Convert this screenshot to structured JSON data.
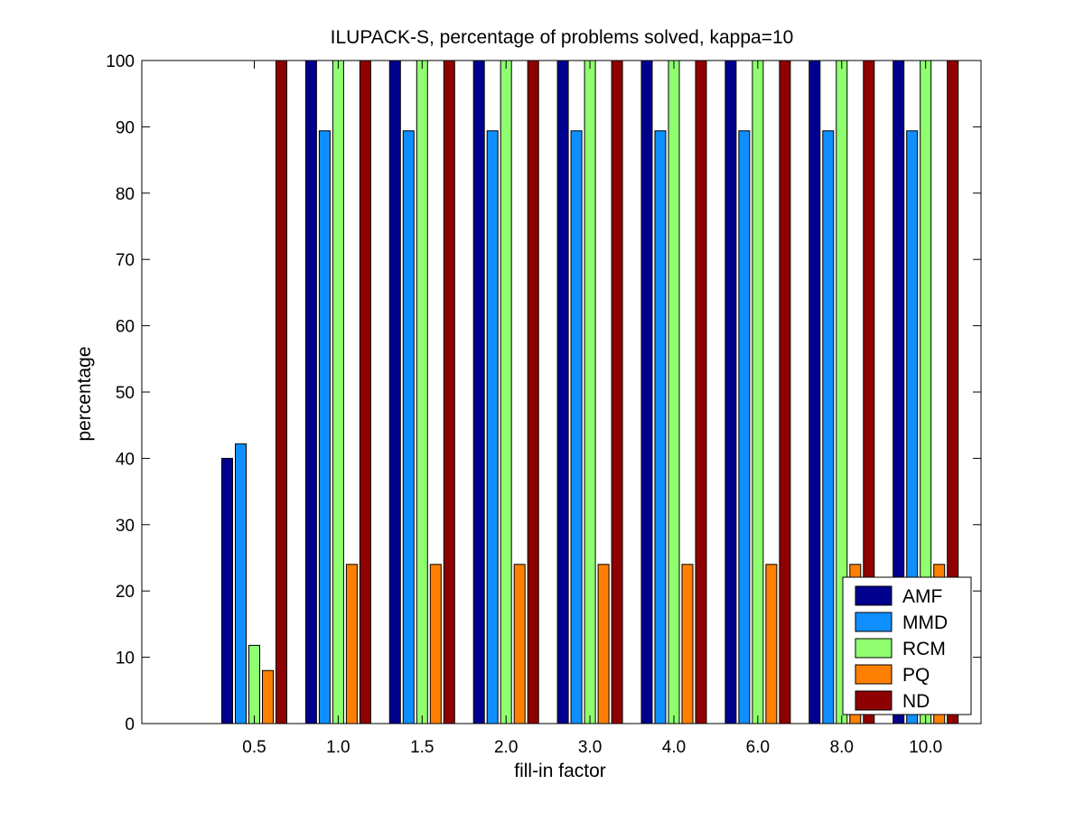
{
  "chart_data": {
    "type": "bar",
    "title": "ILUPACK-S, percentage of problems solved, kappa=10",
    "xlabel": "fill-in factor",
    "ylabel": "percentage",
    "ylim": [
      0,
      100
    ],
    "yticks": [
      0,
      10,
      20,
      30,
      40,
      50,
      60,
      70,
      80,
      90,
      100
    ],
    "categories": [
      "0.5",
      "1.0",
      "1.5",
      "2.0",
      "3.0",
      "4.0",
      "6.0",
      "8.0",
      "10.0"
    ],
    "series": [
      {
        "name": "AMF",
        "color": "#00008f",
        "values": [
          40,
          100,
          100,
          100,
          100,
          100,
          100,
          100,
          100
        ]
      },
      {
        "name": "MMD",
        "color": "#0f8fff",
        "values": [
          42.2,
          89.4,
          89.4,
          89.4,
          89.4,
          89.4,
          89.4,
          89.4,
          89.4
        ]
      },
      {
        "name": "RCM",
        "color": "#8fff70",
        "values": [
          11.8,
          100,
          100,
          100,
          100,
          100,
          100,
          100,
          100
        ]
      },
      {
        "name": "PQ",
        "color": "#ff8000",
        "values": [
          8,
          24,
          24,
          24,
          24,
          24,
          24,
          24,
          24
        ]
      },
      {
        "name": "ND",
        "color": "#8f0000",
        "values": [
          100,
          100,
          100,
          100,
          100,
          100,
          100,
          100,
          100
        ]
      }
    ],
    "legend_position": "bottom-right",
    "grid": false
  }
}
